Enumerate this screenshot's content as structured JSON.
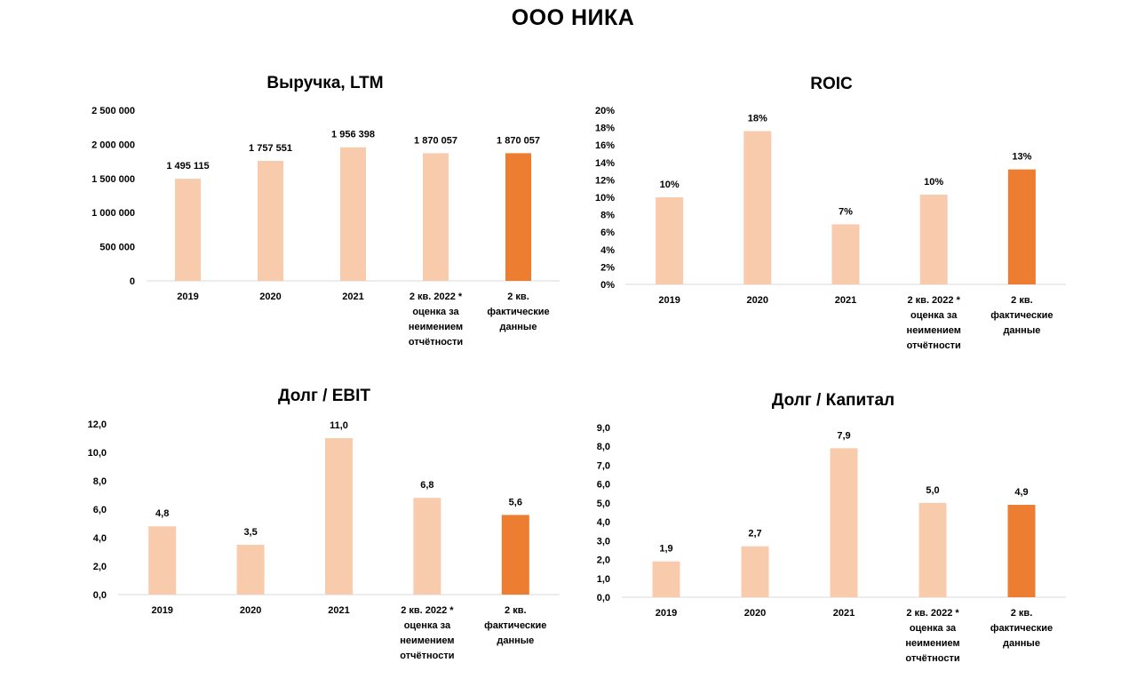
{
  "page_title": "ООО НИКА",
  "colors": {
    "light_bar": "#F8CBAD",
    "dark_bar": "#ED7D31",
    "axis": "#D9D9D9"
  },
  "chart_data": [
    {
      "id": "revenue",
      "type": "bar",
      "title": "Выручка, LTM",
      "categories": [
        [
          "2019"
        ],
        [
          "2020"
        ],
        [
          "2021"
        ],
        [
          "2 кв. 2022 *",
          "оценка за",
          "неимением",
          "отчётности"
        ],
        [
          "2 кв.",
          "фактические",
          "данные"
        ]
      ],
      "values": [
        1495115,
        1757551,
        1956398,
        1870057,
        1870057
      ],
      "value_labels": [
        "1 495 115",
        "1 757 551",
        "1 956 398",
        "1 870 057",
        "1 870 057"
      ],
      "bar_colors": [
        "light",
        "light",
        "light",
        "light",
        "dark"
      ],
      "ylim": [
        0,
        2500000
      ],
      "y_ticks": [
        "0",
        "500 000",
        "1 000 000",
        "1 500 000",
        "2 000 000",
        "2 500 000"
      ],
      "grid": false
    },
    {
      "id": "roic",
      "type": "bar",
      "title": "ROIC",
      "categories": [
        [
          "2019"
        ],
        [
          "2020"
        ],
        [
          "2021"
        ],
        [
          "2 кв. 2022 *",
          "оценка за",
          "неимением",
          "отчётности"
        ],
        [
          "2 кв.",
          "фактические",
          "данные"
        ]
      ],
      "values": [
        10,
        17.6,
        6.9,
        10.3,
        13.2
      ],
      "value_labels": [
        "10%",
        "18%",
        "7%",
        "10%",
        "13%"
      ],
      "bar_colors": [
        "light",
        "light",
        "light",
        "light",
        "dark"
      ],
      "ylim": [
        0,
        20
      ],
      "y_ticks": [
        "0%",
        "2%",
        "4%",
        "6%",
        "8%",
        "10%",
        "12%",
        "14%",
        "16%",
        "18%",
        "20%"
      ],
      "grid": false
    },
    {
      "id": "debt-ebit",
      "type": "bar",
      "title": "Долг / EBIT",
      "categories": [
        [
          "2019"
        ],
        [
          "2020"
        ],
        [
          "2021"
        ],
        [
          "2 кв. 2022 *",
          "оценка за",
          "неимением",
          "отчётности"
        ],
        [
          "2 кв.",
          "фактические",
          "данные"
        ]
      ],
      "values": [
        4.8,
        3.5,
        11.0,
        6.8,
        5.6
      ],
      "value_labels": [
        "4,8",
        "3,5",
        "11,0",
        "6,8",
        "5,6"
      ],
      "bar_colors": [
        "light",
        "light",
        "light",
        "light",
        "dark"
      ],
      "ylim": [
        0,
        12
      ],
      "y_ticks": [
        "0,0",
        "2,0",
        "4,0",
        "6,0",
        "8,0",
        "10,0",
        "12,0"
      ],
      "grid": false
    },
    {
      "id": "debt-capital",
      "type": "bar",
      "title": "Долг / Капитал",
      "categories": [
        [
          "2019"
        ],
        [
          "2020"
        ],
        [
          "2021"
        ],
        [
          "2 кв. 2022 *",
          "оценка за",
          "неимением",
          "отчётности"
        ],
        [
          "2 кв.",
          "фактические",
          "данные"
        ]
      ],
      "values": [
        1.9,
        2.7,
        7.9,
        5.0,
        4.9
      ],
      "value_labels": [
        "1,9",
        "2,7",
        "7,9",
        "5,0",
        "4,9"
      ],
      "bar_colors": [
        "light",
        "light",
        "light",
        "light",
        "dark"
      ],
      "ylim": [
        0,
        9
      ],
      "y_ticks": [
        "0,0",
        "1,0",
        "2,0",
        "3,0",
        "4,0",
        "5,0",
        "6,0",
        "7,0",
        "8,0",
        "9,0"
      ],
      "grid": false
    }
  ]
}
